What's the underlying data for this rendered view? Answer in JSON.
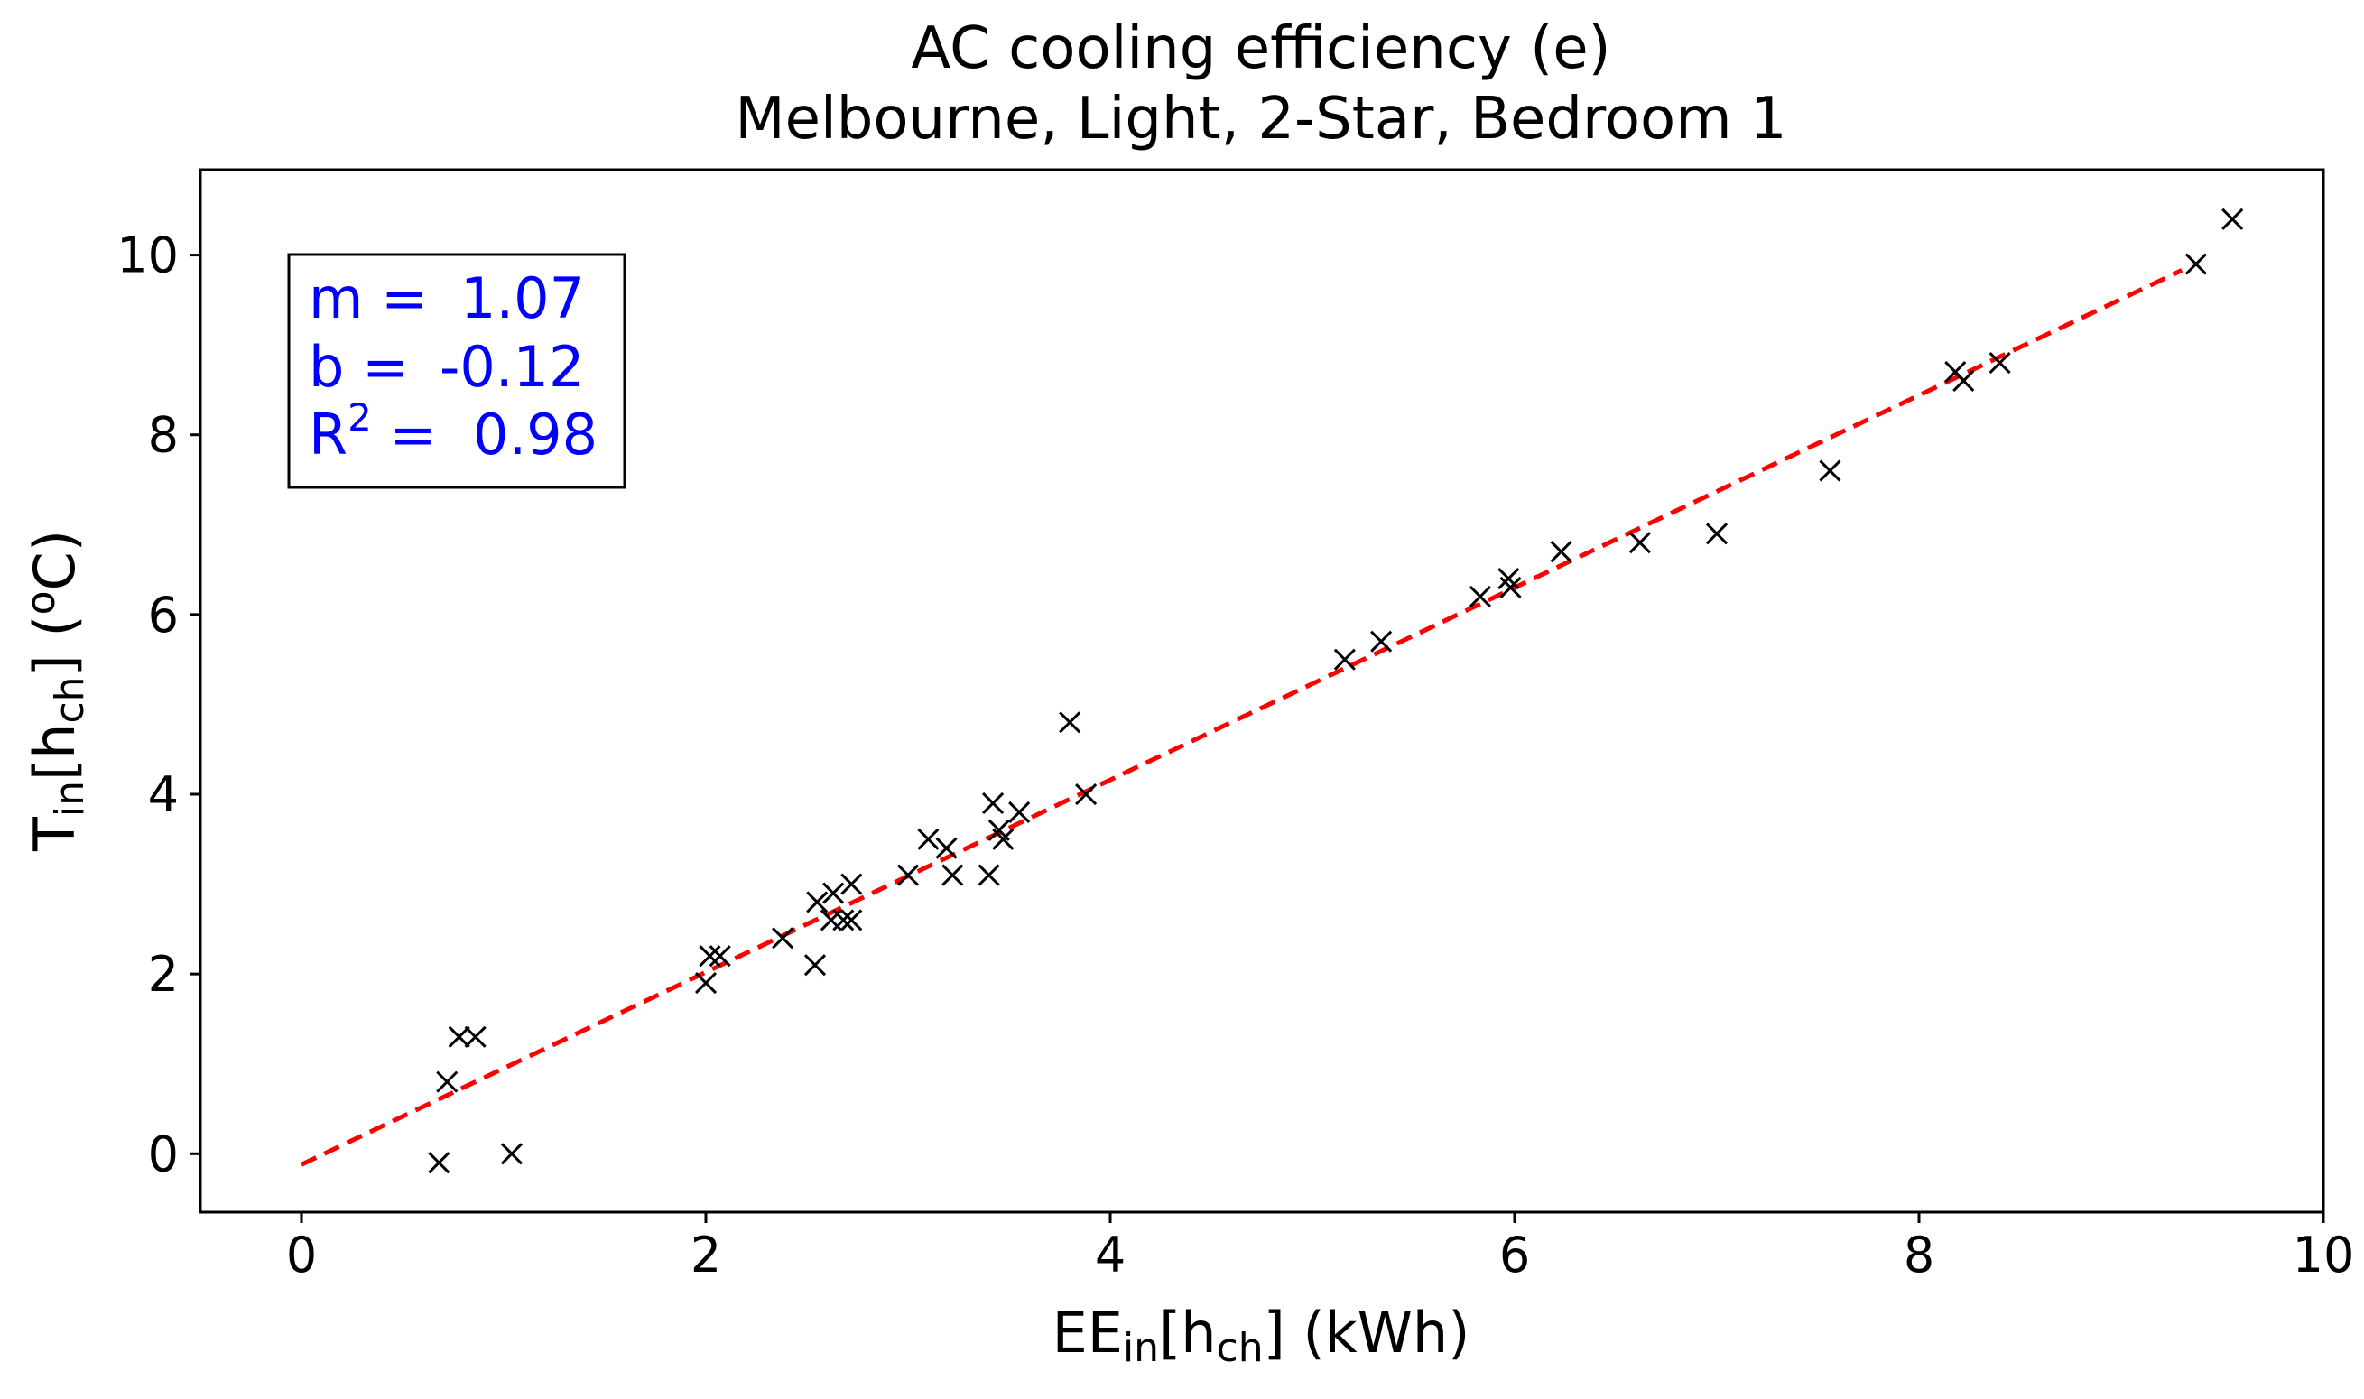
{
  "chart_data": {
    "type": "scatter",
    "title": "AC cooling efficiency (e)",
    "subtitle": "Melbourne, Light, 2-Star, Bedroom 1",
    "xlabel": {
      "main": "EE",
      "sub1": "in",
      "mid": "[h",
      "sub2": "ch",
      "tail": "] (kWh)"
    },
    "ylabel": {
      "main": "T",
      "sub1": "in",
      "mid": "[h",
      "sub2": "ch",
      "tail": "] (",
      "sup": "o",
      "tail2": "C)"
    },
    "xlim": [
      -0.5,
      10
    ],
    "ylim": [
      -0.65,
      10.95
    ],
    "xticks": [
      0,
      2,
      4,
      6,
      8,
      10
    ],
    "yticks": [
      0,
      2,
      4,
      6,
      8,
      10
    ],
    "grid": false,
    "fit": {
      "slope": 1.07,
      "intercept": -0.12,
      "r2": 0.98,
      "x_range": [
        0,
        9.3
      ],
      "color": "#ff0000",
      "style": "dashed"
    },
    "stats_box": {
      "m_label": "m =",
      "m_value": "1.07",
      "b_label": "b =",
      "b_value": "-0.12",
      "r_label": "R",
      "r_sup": "2",
      "r_eq": " =",
      "r_value": "0.98",
      "position": "top-left",
      "color": "#0000ff"
    },
    "marker": "x",
    "marker_color": "#000000",
    "points": [
      {
        "x": 0.68,
        "y": -0.1
      },
      {
        "x": 1.04,
        "y": 0.0
      },
      {
        "x": 0.72,
        "y": 0.8
      },
      {
        "x": 0.78,
        "y": 1.3
      },
      {
        "x": 0.86,
        "y": 1.3
      },
      {
        "x": 2.0,
        "y": 1.9
      },
      {
        "x": 2.02,
        "y": 2.2
      },
      {
        "x": 2.07,
        "y": 2.2
      },
      {
        "x": 2.38,
        "y": 2.4
      },
      {
        "x": 2.54,
        "y": 2.1
      },
      {
        "x": 2.55,
        "y": 2.8
      },
      {
        "x": 2.62,
        "y": 2.6
      },
      {
        "x": 2.63,
        "y": 2.9
      },
      {
        "x": 2.68,
        "y": 2.6
      },
      {
        "x": 2.72,
        "y": 3.0
      },
      {
        "x": 2.72,
        "y": 2.6
      },
      {
        "x": 3.0,
        "y": 3.1
      },
      {
        "x": 3.1,
        "y": 3.5
      },
      {
        "x": 3.19,
        "y": 3.4
      },
      {
        "x": 3.22,
        "y": 3.1
      },
      {
        "x": 3.4,
        "y": 3.1
      },
      {
        "x": 3.42,
        "y": 3.9
      },
      {
        "x": 3.45,
        "y": 3.6
      },
      {
        "x": 3.47,
        "y": 3.5
      },
      {
        "x": 3.55,
        "y": 3.8
      },
      {
        "x": 3.8,
        "y": 4.8
      },
      {
        "x": 3.88,
        "y": 4.0
      },
      {
        "x": 5.16,
        "y": 5.5
      },
      {
        "x": 5.34,
        "y": 5.7
      },
      {
        "x": 5.83,
        "y": 6.2
      },
      {
        "x": 5.97,
        "y": 6.4
      },
      {
        "x": 5.98,
        "y": 6.3
      },
      {
        "x": 6.23,
        "y": 6.7
      },
      {
        "x": 6.62,
        "y": 6.8
      },
      {
        "x": 7.0,
        "y": 6.9
      },
      {
        "x": 7.56,
        "y": 7.6
      },
      {
        "x": 8.18,
        "y": 8.7
      },
      {
        "x": 8.22,
        "y": 8.6
      },
      {
        "x": 8.4,
        "y": 8.8
      },
      {
        "x": 9.37,
        "y": 9.9
      },
      {
        "x": 9.55,
        "y": 10.4
      }
    ]
  }
}
